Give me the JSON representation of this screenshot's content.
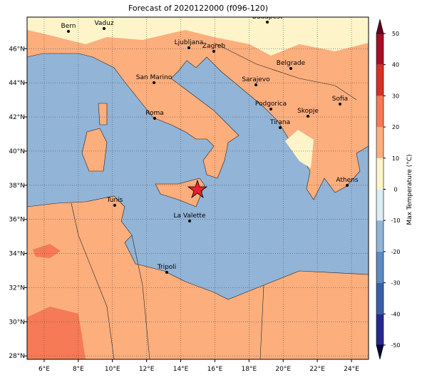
{
  "title": "Forecast of 2020122000 (f096-120)",
  "map": {
    "xlim": [
      5,
      25
    ],
    "ylim": [
      27.8,
      47.85
    ],
    "xticks": [
      {
        "value": 6,
        "label": "6°E"
      },
      {
        "value": 8,
        "label": "8°E"
      },
      {
        "value": 10,
        "label": "10°E"
      },
      {
        "value": 12,
        "label": "12°E"
      },
      {
        "value": 14,
        "label": "14°E"
      },
      {
        "value": 16,
        "label": "16°E"
      },
      {
        "value": 18,
        "label": "18°E"
      },
      {
        "value": 20,
        "label": "20°E"
      },
      {
        "value": 22,
        "label": "22°E"
      },
      {
        "value": 24,
        "label": "24°E"
      }
    ],
    "yticks": [
      {
        "value": 28,
        "label": "28°N"
      },
      {
        "value": 30,
        "label": "30°N"
      },
      {
        "value": 32,
        "label": "32°N"
      },
      {
        "value": 34,
        "label": "34°N"
      },
      {
        "value": 36,
        "label": "36°N"
      },
      {
        "value": 38,
        "label": "38°N"
      },
      {
        "value": 40,
        "label": "40°N"
      },
      {
        "value": 42,
        "label": "42°N"
      },
      {
        "value": 44,
        "label": "44°N"
      },
      {
        "value": 46,
        "label": "46°N"
      }
    ],
    "grid": true
  },
  "cities": [
    "Bern",
    "Vaduz",
    "Budapest",
    "Ljubljana",
    "Zagreb",
    "Belgrade",
    "San Marino",
    "Sarajevo",
    "Sofia",
    "Podgorica",
    "Skopje",
    "Roma",
    "Tirana",
    "Athens",
    "Tunis",
    "La Valette",
    "Tripoli"
  ],
  "colorbar": {
    "label": "Max Temperature (°C)",
    "ticks": [
      -50,
      -40,
      -30,
      -20,
      -10,
      0,
      10,
      20,
      30,
      40,
      50
    ],
    "colors": [
      "#26288f",
      "#3a5fa8",
      "#5b8bc0",
      "#92b4d6",
      "#dbeef4",
      "#fdf5c9",
      "#fdae7d",
      "#f67a55",
      "#d73027",
      "#a50f26"
    ],
    "under_color": "#08083f",
    "over_color": "#67001f"
  }
}
